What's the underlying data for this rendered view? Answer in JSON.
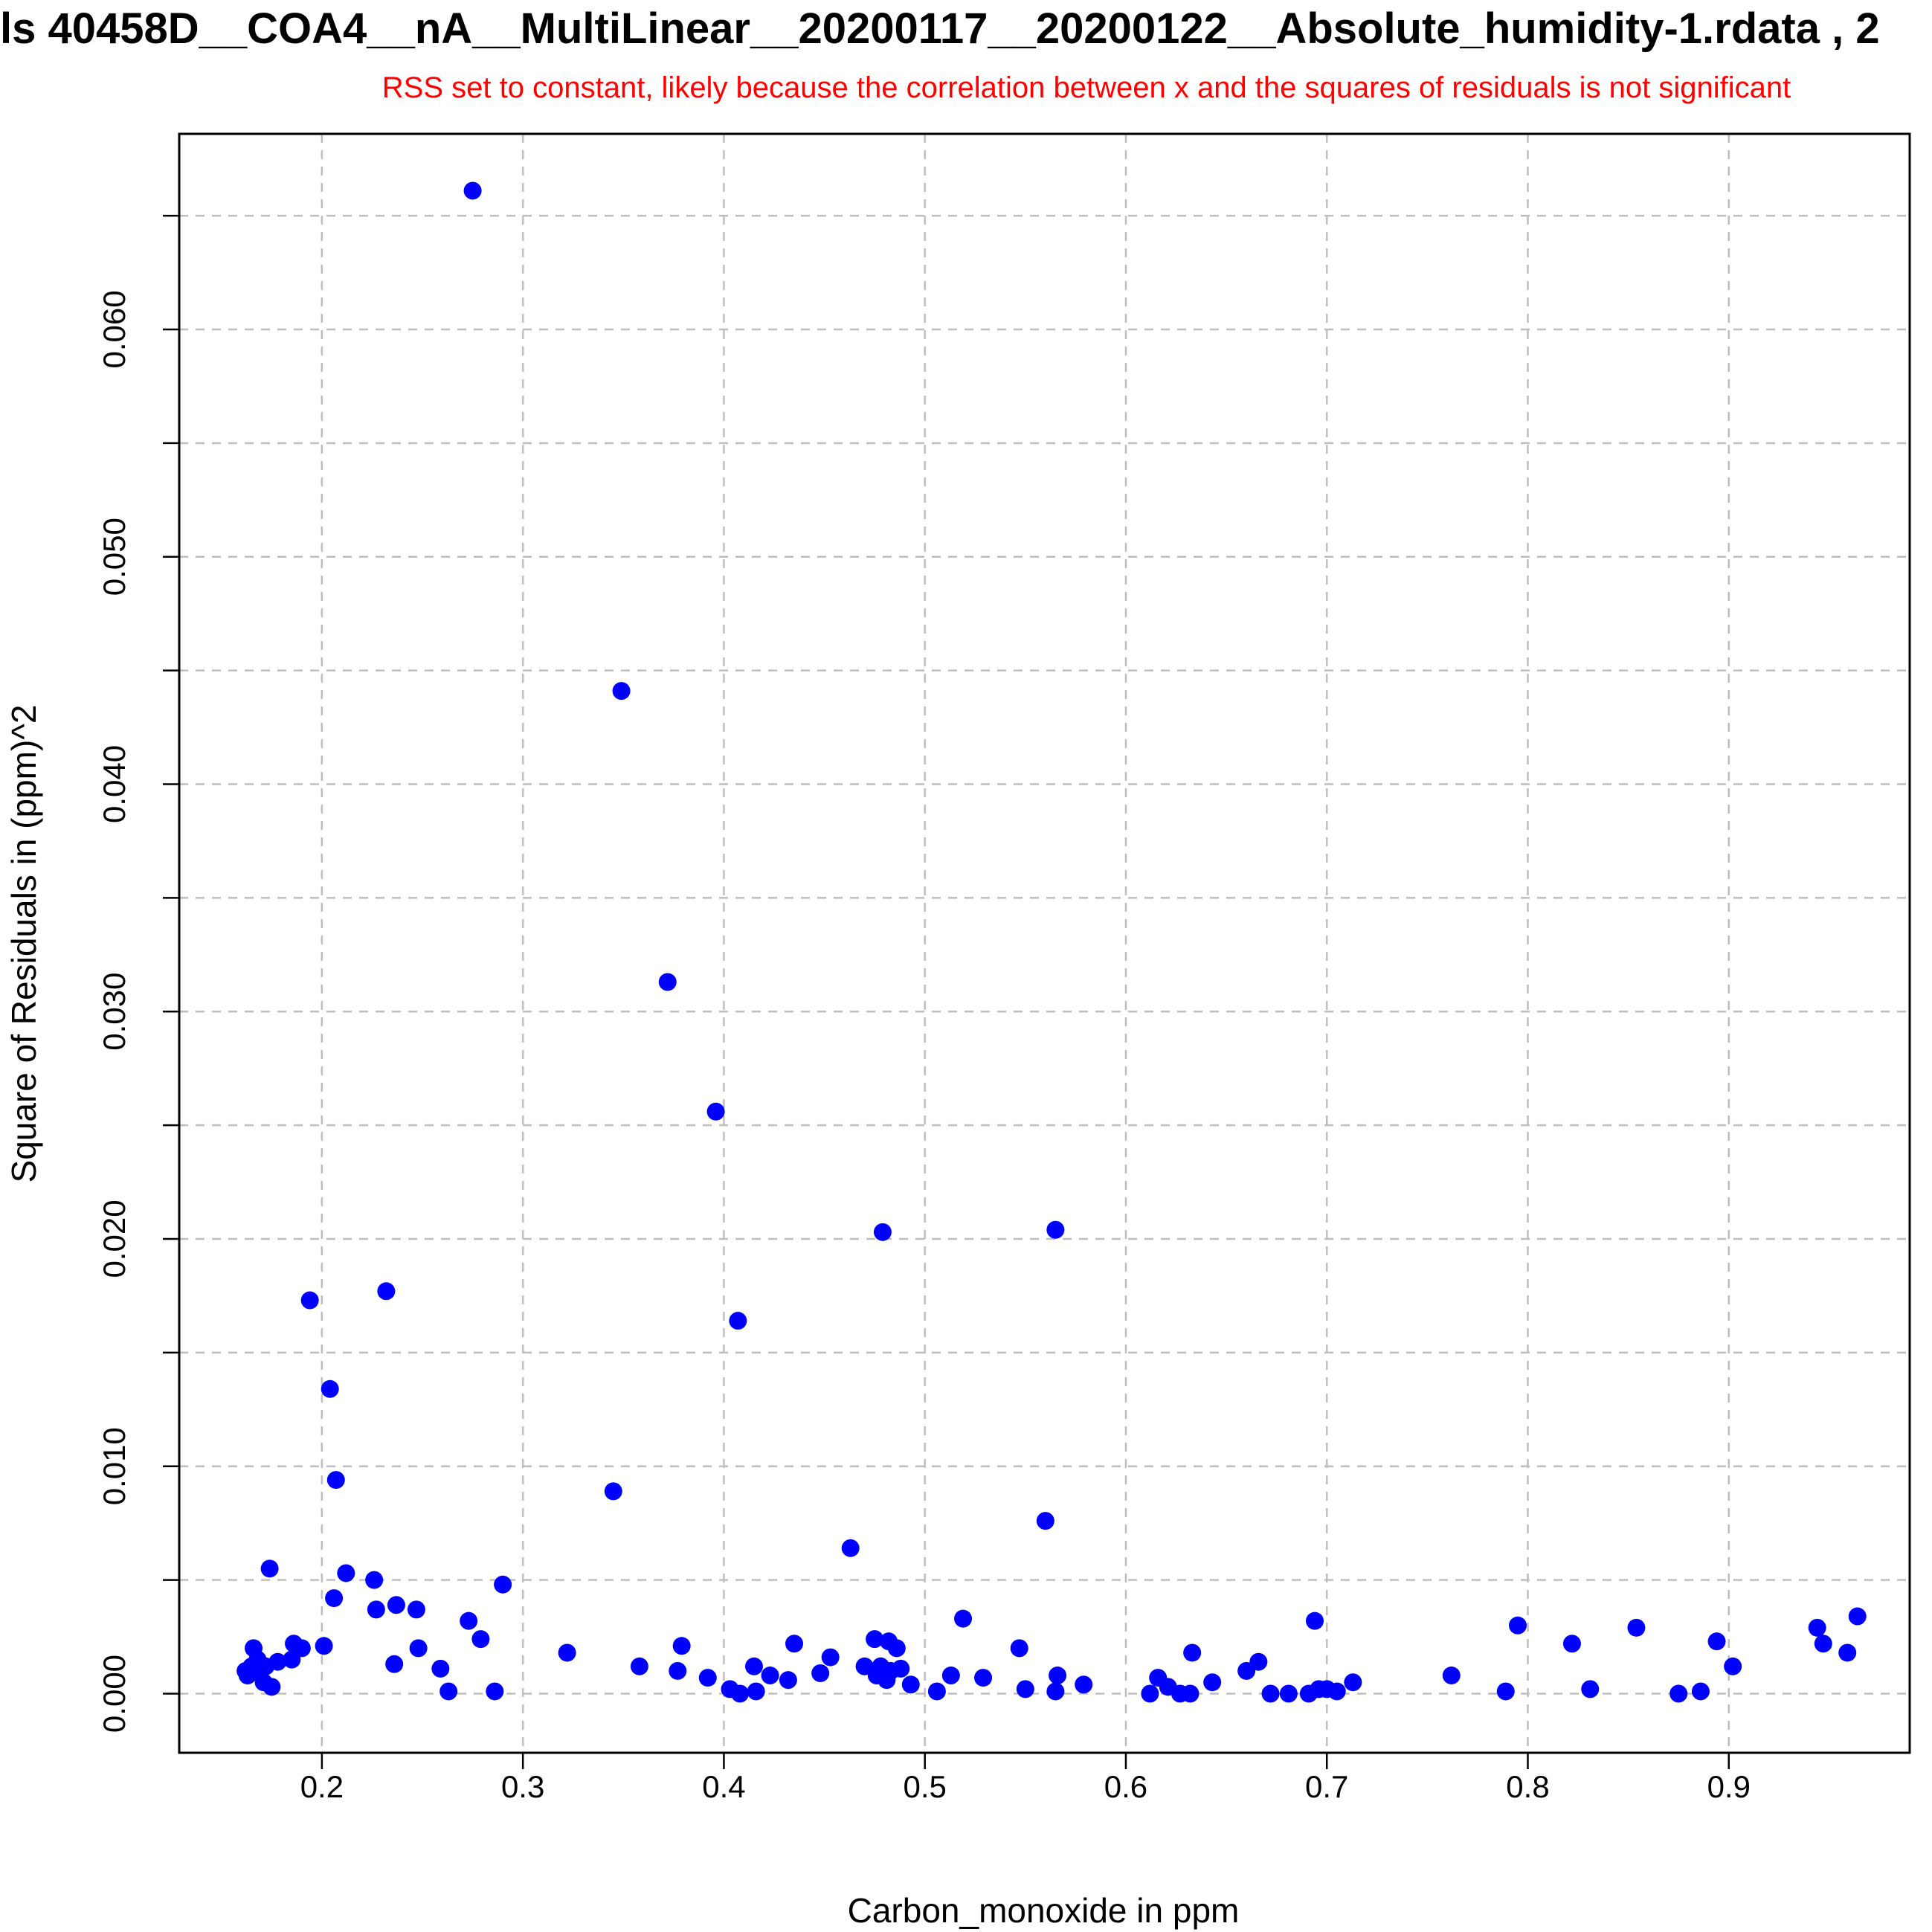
{
  "chart_data": {
    "type": "scatter",
    "title": "ls 40458D__COA4__nA__MultiLinear__20200117__20200122__Absolute_humidity-1.rdata , 2",
    "subtitle": "RSS set to constant, likely because the correlation between x and the squares of residuals is not significant",
    "xlabel": "Carbon_monoxide in ppm",
    "ylabel": "Square of Residuals in (ppm)^2",
    "xlim": [
      0.129,
      0.99
    ],
    "ylim": [
      -0.0026,
      0.0686
    ],
    "x_ticks": [
      0.2,
      0.3,
      0.4,
      0.5,
      0.6,
      0.7,
      0.8,
      0.9
    ],
    "x_tick_labels": [
      "0.2",
      "0.3",
      "0.4",
      "0.5",
      "0.6",
      "0.7",
      "0.8",
      "0.9"
    ],
    "y_ticks": [
      0.0,
      0.01,
      0.02,
      0.03,
      0.04,
      0.05,
      0.06
    ],
    "y_tick_labels": [
      "0.000",
      "0.010",
      "0.020",
      "0.030",
      "0.040",
      "0.050",
      "0.060"
    ],
    "y_minor_ticks": [
      0.005,
      0.015,
      0.025,
      0.035,
      0.045,
      0.055,
      0.065
    ],
    "x_grid": [
      0.2,
      0.3,
      0.4,
      0.5,
      0.6,
      0.7,
      0.8,
      0.9
    ],
    "y_grid": [
      0.0,
      0.005,
      0.01,
      0.015,
      0.02,
      0.025,
      0.03,
      0.035,
      0.04,
      0.045,
      0.05,
      0.055,
      0.06,
      0.065
    ],
    "grid": true,
    "colors": {
      "points": "#0000ff",
      "subtitle": "#ff0000",
      "grid": "#bebebe",
      "frame": "#000000"
    },
    "x": [
      0.275,
      0.349,
      0.372,
      0.396,
      0.479,
      0.565,
      0.407,
      0.194,
      0.232,
      0.204,
      0.207,
      0.345,
      0.56,
      0.463,
      0.174,
      0.212,
      0.206,
      0.226,
      0.227,
      0.237,
      0.247,
      0.29,
      0.273,
      0.279,
      0.164,
      0.166,
      0.168,
      0.171,
      0.162,
      0.165,
      0.163,
      0.169,
      0.172,
      0.175,
      0.178,
      0.185,
      0.186,
      0.19,
      0.201,
      0.236,
      0.248,
      0.259,
      0.263,
      0.286,
      0.322,
      0.358,
      0.377,
      0.379,
      0.392,
      0.403,
      0.408,
      0.415,
      0.416,
      0.423,
      0.432,
      0.435,
      0.448,
      0.453,
      0.47,
      0.475,
      0.476,
      0.478,
      0.481,
      0.482,
      0.483,
      0.486,
      0.488,
      0.493,
      0.506,
      0.513,
      0.519,
      0.529,
      0.547,
      0.55,
      0.565,
      0.566,
      0.579,
      0.612,
      0.616,
      0.621,
      0.627,
      0.632,
      0.633,
      0.643,
      0.66,
      0.666,
      0.672,
      0.681,
      0.691,
      0.694,
      0.696,
      0.7,
      0.705,
      0.713,
      0.762,
      0.789,
      0.795,
      0.822,
      0.831,
      0.854,
      0.875,
      0.886,
      0.894,
      0.902,
      0.944,
      0.947,
      0.959,
      0.964
    ],
    "y": [
      0.0661,
      0.0441,
      0.0313,
      0.0256,
      0.0203,
      0.0204,
      0.0164,
      0.0173,
      0.0177,
      0.0134,
      0.0094,
      0.0089,
      0.0076,
      0.0064,
      0.0055,
      0.0053,
      0.0042,
      0.005,
      0.0037,
      0.0039,
      0.0037,
      0.0048,
      0.0032,
      0.0024,
      0.001,
      0.002,
      0.0015,
      0.0005,
      0.001,
      0.0012,
      0.0008,
      0.001,
      0.0012,
      0.0003,
      0.0014,
      0.0015,
      0.0022,
      0.002,
      0.0021,
      0.0013,
      0.002,
      0.0011,
      0.0001,
      0.0001,
      0.0018,
      0.0012,
      0.001,
      0.0021,
      0.0007,
      0.0002,
      0.0,
      0.0012,
      0.0001,
      0.0008,
      0.0006,
      0.0022,
      0.0009,
      0.0016,
      0.0012,
      0.0024,
      0.0008,
      0.0012,
      0.0006,
      0.0023,
      0.001,
      0.002,
      0.0011,
      0.0004,
      0.0001,
      0.0008,
      0.0033,
      0.0007,
      0.002,
      0.0002,
      0.0001,
      0.0008,
      0.0004,
      0.0,
      0.0007,
      0.0003,
      0.0,
      0.0,
      0.0018,
      0.0005,
      0.001,
      0.0014,
      0.0,
      0.0,
      0.0,
      0.0032,
      0.0002,
      0.0002,
      0.0001,
      0.0005,
      0.0008,
      0.0001,
      0.003,
      0.0022,
      0.0002,
      0.0029,
      0.0,
      0.0001,
      0.0023,
      0.0012,
      0.0029,
      0.0022,
      0.0018,
      0.0034
    ]
  }
}
